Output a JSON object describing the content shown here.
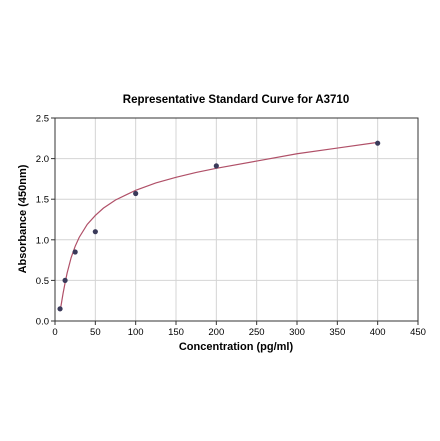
{
  "chart_data": {
    "type": "scatter",
    "title": "Representative Standard Curve for A3710",
    "xlabel": "Concentration (pg/ml)",
    "ylabel": "Absorbance (450nm)",
    "xlim": [
      0,
      450
    ],
    "ylim": [
      0,
      2.5
    ],
    "x_ticks": [
      "0",
      "50",
      "100",
      "150",
      "200",
      "250",
      "300",
      "350",
      "400",
      "450"
    ],
    "y_ticks": [
      "0.0",
      "0.5",
      "1.0",
      "1.5",
      "2.0",
      "2.5"
    ],
    "grid": true,
    "legend": "none",
    "series": [
      {
        "x": [
          6.25,
          12.5,
          25,
          50,
          100,
          200,
          400
        ],
        "y": [
          0.15,
          0.5,
          0.85,
          1.1,
          1.57,
          1.91,
          2.19
        ],
        "marker_color": "#3a3a5a"
      }
    ],
    "fit_curve": {
      "color": "#b05068",
      "x": [
        6.25,
        8,
        10,
        12.5,
        15,
        20,
        25,
        30,
        40,
        50,
        60,
        75,
        100,
        125,
        150,
        175,
        200,
        250,
        300,
        350,
        400
      ],
      "y": [
        0.12,
        0.22,
        0.34,
        0.47,
        0.59,
        0.78,
        0.92,
        1.03,
        1.19,
        1.3,
        1.39,
        1.49,
        1.61,
        1.7,
        1.77,
        1.83,
        1.88,
        1.97,
        2.06,
        2.13,
        2.2
      ]
    }
  }
}
